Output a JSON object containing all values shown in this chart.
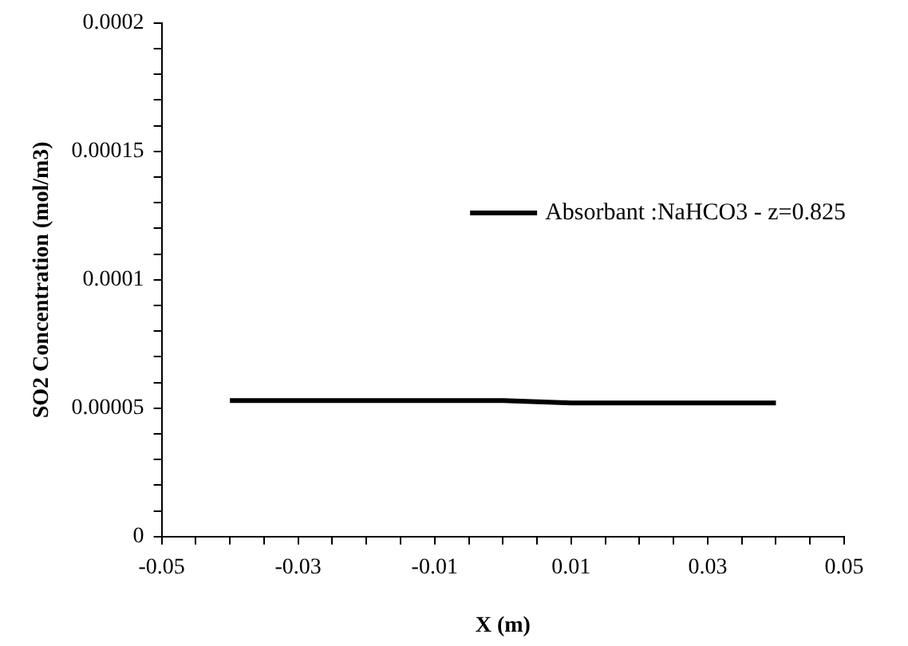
{
  "chart_data": {
    "type": "line",
    "xlabel": "X (m)",
    "ylabel": "SO2 Concentration (mol/m3)",
    "x": [
      -0.04,
      -0.02,
      0,
      0.01,
      0.02,
      0.03,
      0.04
    ],
    "series": [
      {
        "name": "Absorbant :NaHCO3 - z=0.825",
        "color": "#000000",
        "values": [
          5.3e-05,
          5.3e-05,
          5.3e-05,
          5.2e-05,
          5.2e-05,
          5.2e-05,
          5.2e-05
        ]
      }
    ],
    "xlim": [
      -0.05,
      0.05
    ],
    "xticks": [
      -0.05,
      {
        "value": -0.045,
        "label": null
      },
      {
        "value": -0.04,
        "label": null
      },
      {
        "value": -0.035,
        "label": null
      },
      -0.03,
      {
        "value": -0.025,
        "label": null
      },
      {
        "value": -0.02,
        "label": null
      },
      {
        "value": -0.015,
        "label": null
      },
      -0.01,
      {
        "value": -0.005,
        "label": null
      },
      {
        "value": 0,
        "label": null
      },
      {
        "value": 0.005,
        "label": null
      },
      0.01,
      {
        "value": 0.015,
        "label": null
      },
      {
        "value": 0.02,
        "label": null
      },
      {
        "value": 0.025,
        "label": null
      },
      0.03,
      {
        "value": 0.035,
        "label": null
      },
      {
        "value": 0.04,
        "label": null
      },
      {
        "value": 0.045,
        "label": null
      },
      0.05
    ],
    "ylim": [
      0,
      0.0002
    ],
    "yticks": [
      0,
      {
        "value": 1e-05,
        "label": null
      },
      {
        "value": 2e-05,
        "label": null
      },
      {
        "value": 3e-05,
        "label": null
      },
      {
        "value": 4e-05,
        "label": null
      },
      {
        "value": 5e-05,
        "label": "0.00005"
      },
      {
        "value": 6e-05,
        "label": null
      },
      {
        "value": 7e-05,
        "label": null
      },
      {
        "value": 8e-05,
        "label": null
      },
      {
        "value": 9e-05,
        "label": null
      },
      0.0001,
      {
        "value": 0.00011,
        "label": null
      },
      {
        "value": 0.00012,
        "label": null
      },
      {
        "value": 0.00013,
        "label": null
      },
      {
        "value": 0.00014,
        "label": null
      },
      0.00015,
      {
        "value": 0.00016,
        "label": null
      },
      {
        "value": 0.00017,
        "label": null
      },
      {
        "value": 0.00018,
        "label": null
      },
      {
        "value": 0.00019,
        "label": null
      },
      0.0002
    ],
    "grid": false,
    "legend": "right",
    "marker": "none",
    "line_style": "solid"
  }
}
